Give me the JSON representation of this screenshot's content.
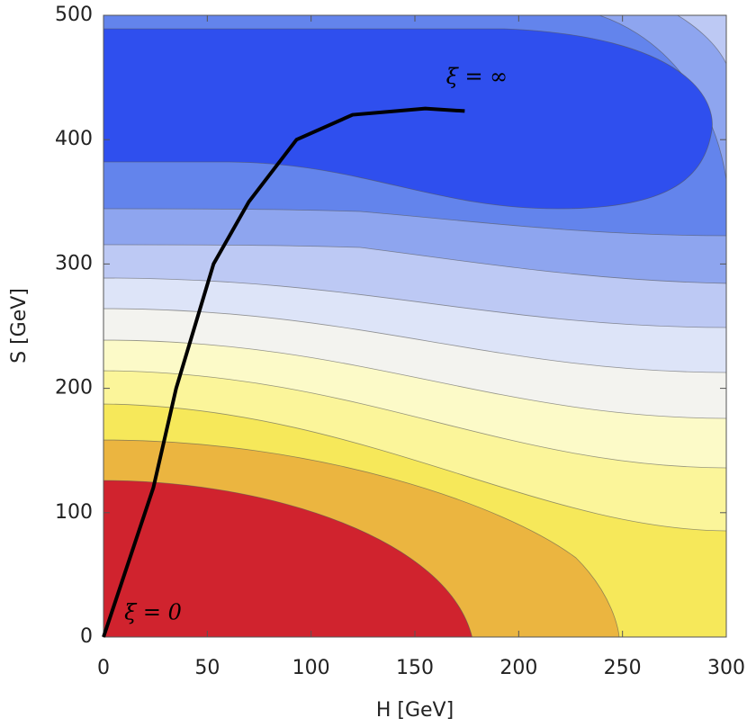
{
  "chart_data": {
    "type": "contour",
    "xlabel": "H  [GeV]",
    "ylabel": "S  [GeV]",
    "xlim": [
      0,
      300
    ],
    "ylim": [
      0,
      500
    ],
    "xticks": [
      0,
      50,
      100,
      150,
      200,
      250,
      300
    ],
    "yticks": [
      0,
      100,
      200,
      300,
      400,
      500
    ],
    "curve": {
      "color": "#000000",
      "x": [
        0,
        12,
        24,
        35,
        53,
        70,
        93,
        120,
        155,
        174
      ],
      "y": [
        0,
        60,
        120,
        200,
        300,
        350,
        400,
        420,
        425,
        423
      ]
    },
    "annotations": [
      {
        "text": "ξ = ∞",
        "x": 165,
        "y": 445
      },
      {
        "text": "ξ = 0",
        "x": 10,
        "y": 14
      }
    ]
  }
}
